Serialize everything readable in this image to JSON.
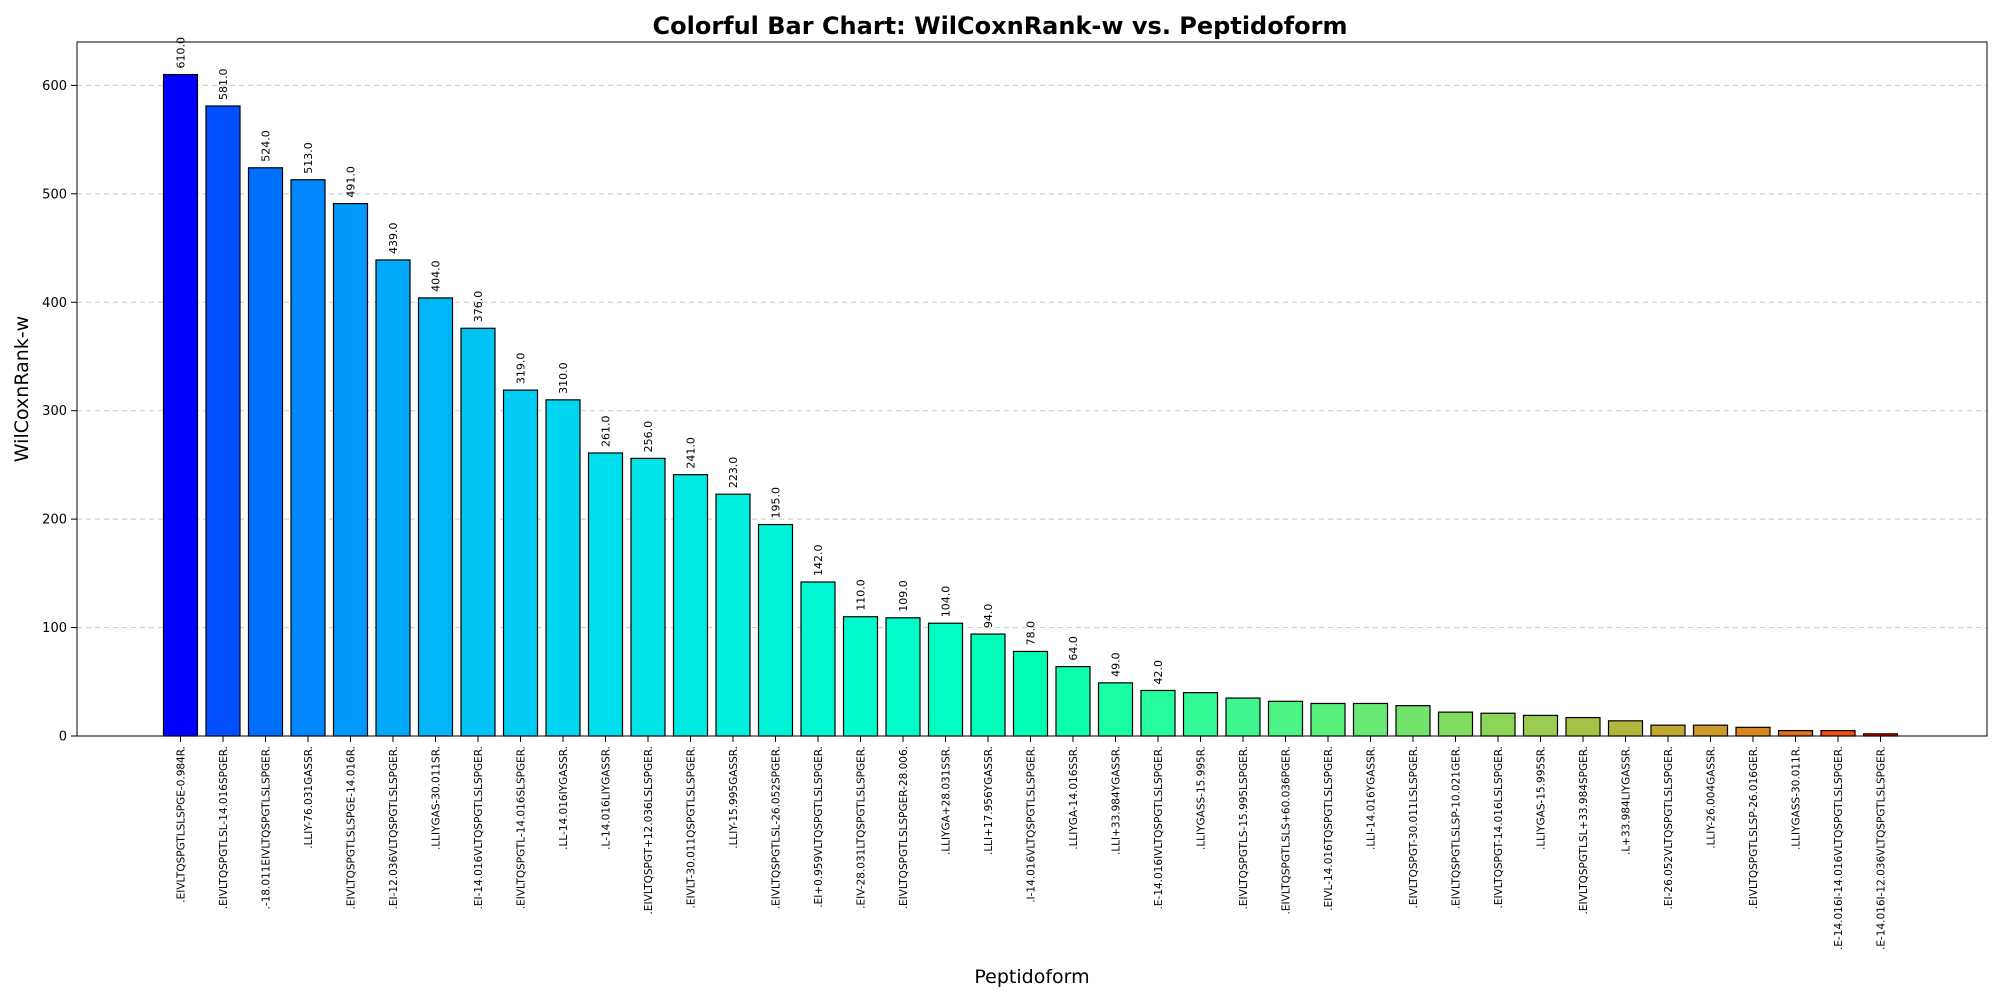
{
  "chart_data": {
    "type": "bar",
    "title": "Colorful Bar Chart: WilCoxnRank-w vs. Peptidoform",
    "xlabel": "Peptidoform",
    "ylabel": "WilCoxnRank-w",
    "ylim": [
      0,
      640
    ],
    "yticks": [
      0,
      100,
      200,
      300,
      400,
      500,
      600
    ],
    "grid": "y-dashed",
    "colormap": "rainbow",
    "categories": [
      ".EIVLTQSPGTLSLSPGE-0.984R.",
      ".EIVLTQSPGTLSL-14.016SPGER.",
      ".-18.011EIVLTQSPGTLSLSPGER.",
      ".LLIY-76.031GASSR.",
      ".EIVLTQSPGTLSLSPGE-14.016R.",
      ".EI-12.036VLTQSPGTLSLSPGER.",
      ".LLIYGAS-30.011SR.",
      ".EI-14.016VLTQSPGTLSLSPGER.",
      ".EIVLTQSPGTL-14.016SLSPGER.",
      ".LL-14.016IYGASSR.",
      ".L-14.016LIYGASSR.",
      ".EIVLTQSPGT+12.036LSLSPGER.",
      ".EIVLT-30.011QSPGTLSLSPGER.",
      ".LLIY-15.995GASSR.",
      ".EIVLTQSPGTLSL-26.052SPGER.",
      ".EI+0.959VLTQSPGTLSLSPGER.",
      ".EIV-28.031LTQSPGTLSLSPGER.",
      ".EIVLTQSPGTLSLSPGER-28.006.",
      ".LLIYGA+28.031SSR.",
      ".LLI+17.956YGASSR.",
      ".I-14.016VLTQSPGTLSLSPGER.",
      ".LLIYGA-14.016SSR.",
      ".LLI+33.984YGASSR.",
      ".E-14.016IVLTQSPGTLSLSPGER.",
      ".LLIYGASS-15.995R.",
      ".EIVLTQSPGTLS-15.995LSPGER.",
      ".EIVLTQSPGTLSLS+60.036PGER.",
      ".EIVL-14.016TQSPGTLSLSPGER.",
      ".LLI-14.016YGASSR.",
      ".EIVLTQSPGT-30.011LSLSPGER.",
      ".EIVLTQSPGTLSLSP-10.021GER.",
      ".EIVLTQSPGT-14.016LSLSPGER.",
      ".LLIYGAS-15.995SR.",
      ".EIVLTQSPGTLSL+33.984SPGER.",
      ".L+33.984LIYGASSR.",
      ".EI-26.052VLTQSPGTLSLSPGER.",
      ".LLIY-26.004GASSR.",
      ".EIVLTQSPGTLSLSP-26.016GER.",
      ".LLIYGASS-30.011R.",
      ".E-14.016I-14.016VLTQSPGTLSLSPGER.",
      ".E-14.016I-12.036VLTQSPGTLSLSPGER."
    ],
    "values": [
      610,
      581,
      524,
      513,
      491,
      439,
      404,
      376,
      319,
      310,
      261,
      256,
      241,
      223,
      195,
      142,
      110,
      109,
      104,
      94,
      78,
      64,
      49,
      42,
      40,
      35,
      32,
      30,
      30,
      28,
      22,
      21,
      19,
      17,
      14,
      10,
      10,
      8,
      5,
      5,
      2
    ],
    "data_labels": [
      "610.0",
      "581.0",
      "524.0",
      "513.0",
      "491.0",
      "439.0",
      "404.0",
      "376.0",
      "319.0",
      "310.0",
      "261.0",
      "256.0",
      "241.0",
      "223.0",
      "195.0",
      "142.0",
      "110.0",
      "109.0",
      "104.0",
      "94.0",
      "78.0",
      "64.0",
      "49.0",
      "42.0",
      "",
      "",
      "",
      "",
      "",
      "",
      "",
      "",
      "",
      "",
      "",
      "",
      "",
      "",
      "",
      "",
      ""
    ]
  }
}
